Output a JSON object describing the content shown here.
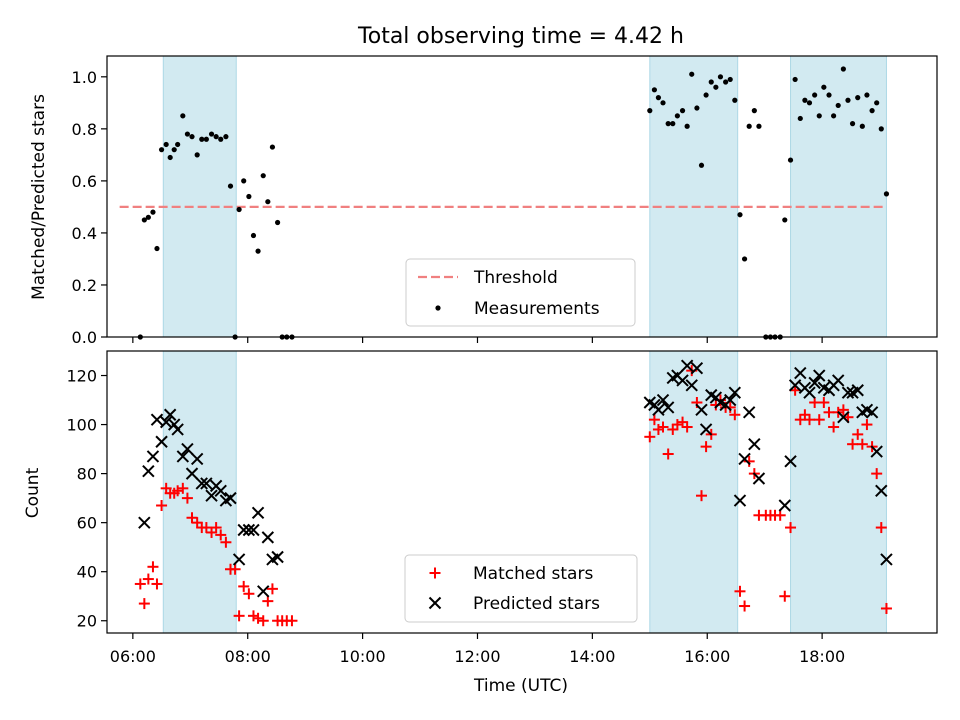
{
  "title": "Total observing time = 4.42 h",
  "colors": {
    "band": "#add8e6",
    "threshold": "#f08080",
    "matched": "#ff0000",
    "predicted": "#000000",
    "measurement": "#000000"
  },
  "chart_data": [
    {
      "type": "scatter",
      "ylabel": "Matched/Predicted stars",
      "ylim": [
        0,
        1.08
      ],
      "yticks": [
        "0.0",
        "0.2",
        "0.4",
        "0.6",
        "0.8",
        "1.0"
      ],
      "xlim_hours": [
        5.55,
        20.0
      ],
      "shaded_intervals": [
        [
          6.53,
          7.8
        ],
        [
          15.0,
          16.53
        ],
        [
          17.45,
          19.12
        ]
      ],
      "threshold": {
        "name": "Threshold",
        "y": 0.5,
        "x_range": [
          5.77,
          19.12
        ]
      },
      "legend": [
        "Threshold",
        "Measurements"
      ],
      "legend_position": "lower center",
      "series": [
        {
          "name": "Measurements",
          "points": [
            [
              6.13,
              0.0
            ],
            [
              6.2,
              0.45
            ],
            [
              6.27,
              0.46
            ],
            [
              6.35,
              0.48
            ],
            [
              6.42,
              0.34
            ],
            [
              6.5,
              0.72
            ],
            [
              6.58,
              0.74
            ],
            [
              6.65,
              0.69
            ],
            [
              6.72,
              0.72
            ],
            [
              6.78,
              0.74
            ],
            [
              6.87,
              0.85
            ],
            [
              6.95,
              0.78
            ],
            [
              7.03,
              0.77
            ],
            [
              7.12,
              0.7
            ],
            [
              7.2,
              0.76
            ],
            [
              7.28,
              0.76
            ],
            [
              7.37,
              0.78
            ],
            [
              7.45,
              0.77
            ],
            [
              7.53,
              0.76
            ],
            [
              7.62,
              0.77
            ],
            [
              7.7,
              0.58
            ],
            [
              7.78,
              0.0
            ],
            [
              7.85,
              0.49
            ],
            [
              7.93,
              0.6
            ],
            [
              8.02,
              0.54
            ],
            [
              8.1,
              0.39
            ],
            [
              8.18,
              0.33
            ],
            [
              8.27,
              0.62
            ],
            [
              8.35,
              0.52
            ],
            [
              8.43,
              0.73
            ],
            [
              8.52,
              0.44
            ],
            [
              8.6,
              0.0
            ],
            [
              8.68,
              0.0
            ],
            [
              8.77,
              0.0
            ],
            [
              15.0,
              0.87
            ],
            [
              15.08,
              0.95
            ],
            [
              15.15,
              0.92
            ],
            [
              15.23,
              0.9
            ],
            [
              15.32,
              0.82
            ],
            [
              15.4,
              0.82
            ],
            [
              15.48,
              0.85
            ],
            [
              15.57,
              0.87
            ],
            [
              15.65,
              0.81
            ],
            [
              15.73,
              1.01
            ],
            [
              15.82,
              0.88
            ],
            [
              15.9,
              0.66
            ],
            [
              15.98,
              0.93
            ],
            [
              16.07,
              0.98
            ],
            [
              16.15,
              0.96
            ],
            [
              16.23,
              1.0
            ],
            [
              16.32,
              0.98
            ],
            [
              16.4,
              0.99
            ],
            [
              16.48,
              0.91
            ],
            [
              16.57,
              0.47
            ],
            [
              16.65,
              0.3
            ],
            [
              16.73,
              0.81
            ],
            [
              16.82,
              0.87
            ],
            [
              16.9,
              0.81
            ],
            [
              17.02,
              0.0
            ],
            [
              17.1,
              0.0
            ],
            [
              17.18,
              0.0
            ],
            [
              17.27,
              0.0
            ],
            [
              17.35,
              0.45
            ],
            [
              17.45,
              0.68
            ],
            [
              17.53,
              0.99
            ],
            [
              17.62,
              0.84
            ],
            [
              17.7,
              0.91
            ],
            [
              17.78,
              0.9
            ],
            [
              17.87,
              0.93
            ],
            [
              17.95,
              0.85
            ],
            [
              18.03,
              0.96
            ],
            [
              18.12,
              0.93
            ],
            [
              18.2,
              0.85
            ],
            [
              18.28,
              0.89
            ],
            [
              18.37,
              1.03
            ],
            [
              18.45,
              0.91
            ],
            [
              18.53,
              0.82
            ],
            [
              18.62,
              0.92
            ],
            [
              18.7,
              0.81
            ],
            [
              18.78,
              0.93
            ],
            [
              18.87,
              0.87
            ],
            [
              18.95,
              0.9
            ],
            [
              19.03,
              0.8
            ],
            [
              19.12,
              0.55
            ]
          ]
        }
      ]
    },
    {
      "type": "scatter",
      "xlabel": "Time (UTC)",
      "ylabel": "Count",
      "ylim": [
        15,
        130
      ],
      "yticks": [
        "20",
        "40",
        "60",
        "80",
        "100",
        "120"
      ],
      "xlim_hours": [
        5.55,
        20.0
      ],
      "xticks": [
        "06:00",
        "08:00",
        "10:00",
        "12:00",
        "14:00",
        "16:00",
        "18:00"
      ],
      "shaded_intervals": [
        [
          6.53,
          7.8
        ],
        [
          15.0,
          16.53
        ],
        [
          17.45,
          19.12
        ]
      ],
      "legend": [
        "Matched stars",
        "Predicted stars"
      ],
      "legend_position": "lower center",
      "series": [
        {
          "name": "Matched stars",
          "marker": "+",
          "points": [
            [
              6.13,
              35
            ],
            [
              6.2,
              27
            ],
            [
              6.27,
              37
            ],
            [
              6.35,
              42
            ],
            [
              6.42,
              35
            ],
            [
              6.5,
              67
            ],
            [
              6.58,
              74
            ],
            [
              6.65,
              72
            ],
            [
              6.72,
              72
            ],
            [
              6.78,
              73
            ],
            [
              6.87,
              74
            ],
            [
              6.95,
              70
            ],
            [
              7.03,
              62
            ],
            [
              7.12,
              60
            ],
            [
              7.2,
              58
            ],
            [
              7.28,
              58
            ],
            [
              7.37,
              56
            ],
            [
              7.45,
              58
            ],
            [
              7.53,
              55
            ],
            [
              7.62,
              52
            ],
            [
              7.7,
              41
            ],
            [
              7.78,
              41
            ],
            [
              7.85,
              22
            ],
            [
              7.93,
              34
            ],
            [
              8.02,
              31
            ],
            [
              8.1,
              22
            ],
            [
              8.18,
              21
            ],
            [
              8.27,
              20
            ],
            [
              8.35,
              28
            ],
            [
              8.43,
              33
            ],
            [
              8.52,
              20
            ],
            [
              8.6,
              20
            ],
            [
              8.68,
              20
            ],
            [
              8.77,
              20
            ],
            [
              15.0,
              95
            ],
            [
              15.08,
              102
            ],
            [
              15.15,
              98
            ],
            [
              15.23,
              99
            ],
            [
              15.32,
              88
            ],
            [
              15.4,
              98
            ],
            [
              15.48,
              100
            ],
            [
              15.57,
              101
            ],
            [
              15.65,
              99
            ],
            [
              15.73,
              122
            ],
            [
              15.82,
              109
            ],
            [
              15.9,
              71
            ],
            [
              15.98,
              91
            ],
            [
              16.07,
              96
            ],
            [
              16.15,
              108
            ],
            [
              16.23,
              110
            ],
            [
              16.32,
              107
            ],
            [
              16.4,
              107
            ],
            [
              16.48,
              104
            ],
            [
              16.57,
              32
            ],
            [
              16.65,
              26
            ],
            [
              16.73,
              85
            ],
            [
              16.82,
              80
            ],
            [
              16.9,
              63
            ],
            [
              17.02,
              63
            ],
            [
              17.1,
              63
            ],
            [
              17.18,
              63
            ],
            [
              17.27,
              63
            ],
            [
              17.35,
              30
            ],
            [
              17.45,
              58
            ],
            [
              17.53,
              114
            ],
            [
              17.62,
              102
            ],
            [
              17.7,
              104
            ],
            [
              17.78,
              102
            ],
            [
              17.87,
              109
            ],
            [
              17.95,
              102
            ],
            [
              18.03,
              109
            ],
            [
              18.12,
              105
            ],
            [
              18.2,
              99
            ],
            [
              18.28,
              105
            ],
            [
              18.37,
              106
            ],
            [
              18.45,
              103
            ],
            [
              18.53,
              92
            ],
            [
              18.62,
              96
            ],
            [
              18.7,
              92
            ],
            [
              18.78,
              100
            ],
            [
              18.87,
              91
            ],
            [
              18.95,
              80
            ],
            [
              19.03,
              58
            ],
            [
              19.12,
              25
            ]
          ]
        },
        {
          "name": "Predicted stars",
          "marker": "x",
          "points": [
            [
              6.2,
              60
            ],
            [
              6.27,
              81
            ],
            [
              6.35,
              87
            ],
            [
              6.42,
              102
            ],
            [
              6.5,
              93
            ],
            [
              6.58,
              101
            ],
            [
              6.65,
              104
            ],
            [
              6.72,
              100
            ],
            [
              6.78,
              98
            ],
            [
              6.87,
              87
            ],
            [
              6.95,
              90
            ],
            [
              7.03,
              80
            ],
            [
              7.12,
              86
            ],
            [
              7.2,
              76
            ],
            [
              7.28,
              76
            ],
            [
              7.37,
              71
            ],
            [
              7.45,
              75
            ],
            [
              7.53,
              73
            ],
            [
              7.62,
              69
            ],
            [
              7.7,
              70
            ],
            [
              7.85,
              45
            ],
            [
              7.93,
              57
            ],
            [
              8.02,
              57
            ],
            [
              8.1,
              57
            ],
            [
              8.18,
              64
            ],
            [
              8.27,
              32
            ],
            [
              8.35,
              54
            ],
            [
              8.43,
              45
            ],
            [
              8.52,
              46
            ],
            [
              15.0,
              109
            ],
            [
              15.08,
              108
            ],
            [
              15.15,
              106
            ],
            [
              15.23,
              110
            ],
            [
              15.32,
              107
            ],
            [
              15.4,
              119
            ],
            [
              15.48,
              120
            ],
            [
              15.57,
              118
            ],
            [
              15.65,
              124
            ],
            [
              15.73,
              116
            ],
            [
              15.82,
              123
            ],
            [
              15.9,
              106
            ],
            [
              15.98,
              98
            ],
            [
              16.07,
              112
            ],
            [
              16.15,
              111
            ],
            [
              16.23,
              109
            ],
            [
              16.32,
              108
            ],
            [
              16.4,
              110
            ],
            [
              16.48,
              113
            ],
            [
              16.57,
              69
            ],
            [
              16.65,
              86
            ],
            [
              16.73,
              105
            ],
            [
              16.82,
              92
            ],
            [
              16.9,
              78
            ],
            [
              17.35,
              67
            ],
            [
              17.45,
              85
            ],
            [
              17.53,
              116
            ],
            [
              17.62,
              121
            ],
            [
              17.7,
              115
            ],
            [
              17.78,
              113
            ],
            [
              17.87,
              117
            ],
            [
              17.95,
              120
            ],
            [
              18.03,
              115
            ],
            [
              18.12,
              114
            ],
            [
              18.2,
              116
            ],
            [
              18.28,
              118
            ],
            [
              18.37,
              103
            ],
            [
              18.45,
              113
            ],
            [
              18.53,
              113
            ],
            [
              18.62,
              114
            ],
            [
              18.7,
              105
            ],
            [
              18.78,
              106
            ],
            [
              18.87,
              105
            ],
            [
              18.95,
              89
            ],
            [
              19.03,
              73
            ],
            [
              19.12,
              45
            ]
          ]
        }
      ]
    }
  ]
}
